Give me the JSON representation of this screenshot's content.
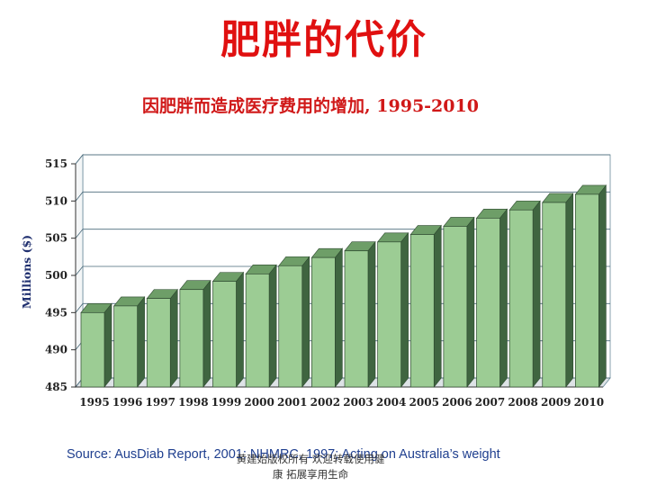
{
  "title": "肥胖的代价",
  "subtitle": "因肥胖而造成医疗费用的增加, 1995-2010",
  "source": "Source: AusDiab Report, 2001; NHMRC, 1997; Acting on Australia’s weight",
  "watermark": {
    "line1": "黄建始版权所有 欢迎转载使用健",
    "line2": "康 拓展享用生命"
  },
  "colors": {
    "title": "#e01010",
    "bar_front": "#9ccc94",
    "bar_top": "#6e9e68",
    "bar_side": "#3f6540",
    "source_text": "#1f3f8f"
  },
  "chart_data": {
    "type": "bar",
    "categories": [
      "1995",
      "1996",
      "1997",
      "1998",
      "1999",
      "2000",
      "2001",
      "2002",
      "2003",
      "2004",
      "2005",
      "2006",
      "2007",
      "2008",
      "2009",
      "2010"
    ],
    "values": [
      495,
      495.9,
      496.9,
      498.1,
      499.2,
      500.2,
      501.3,
      502.4,
      503.3,
      504.5,
      505.5,
      506.6,
      507.7,
      508.8,
      509.8,
      510.9
    ],
    "ylabel": "Millions ($)",
    "ylim": [
      485,
      515
    ],
    "yticks": [
      "485",
      "490",
      "495",
      "500",
      "505",
      "510",
      "515"
    ],
    "grid": true
  }
}
